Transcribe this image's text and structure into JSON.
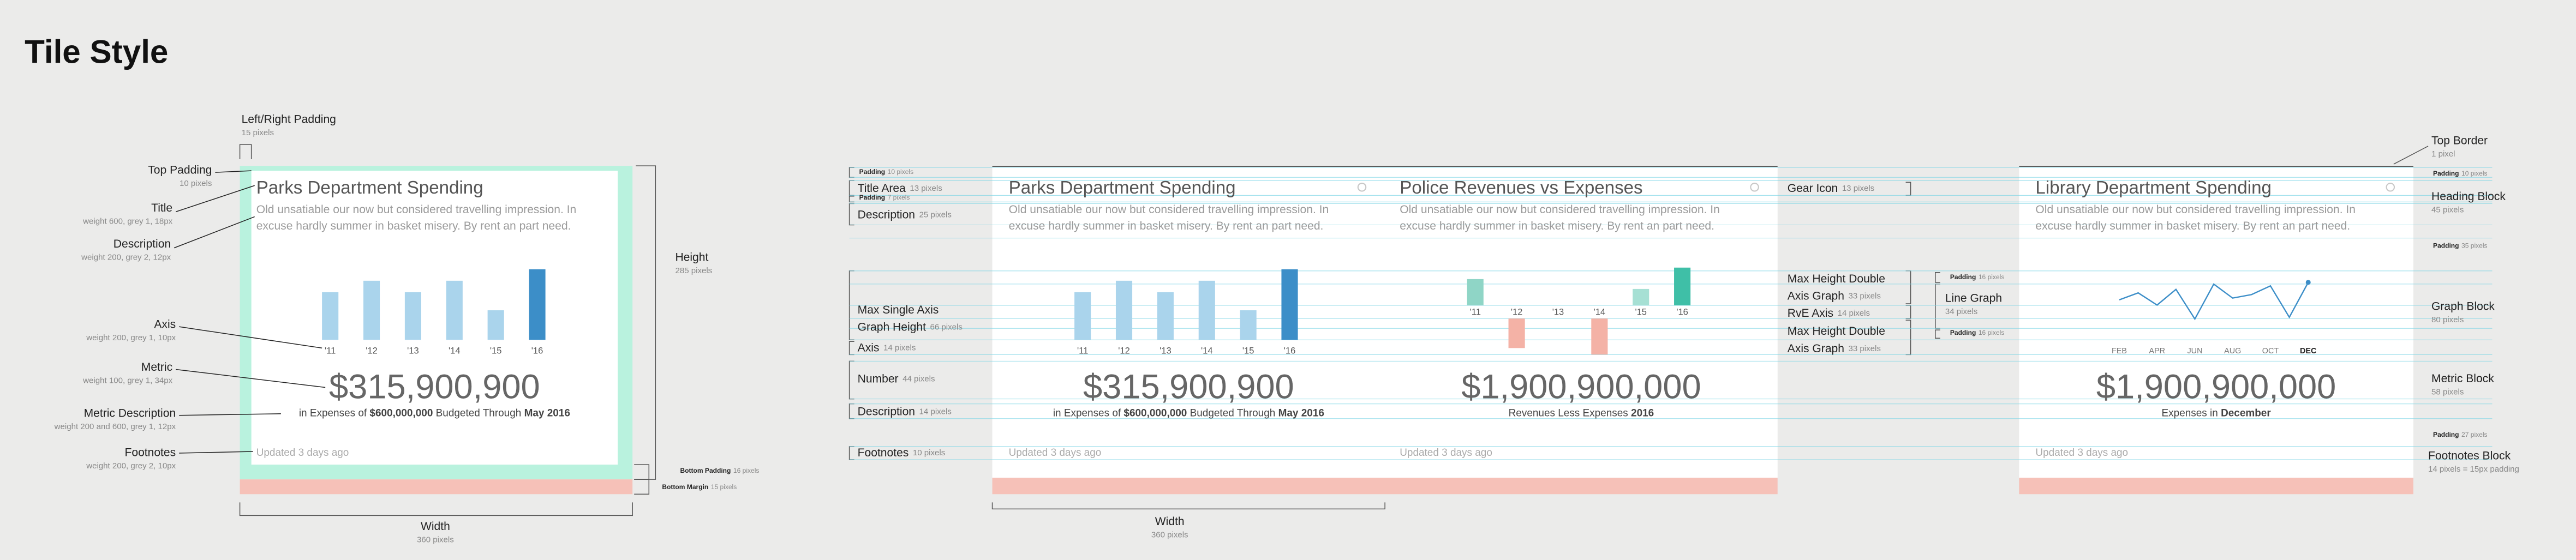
{
  "title": "Tile Style",
  "tiles": [
    {
      "title": "Parks Department Spending",
      "description": [
        "Old unsatiable our now but considered travelling impression. In",
        "excuse hardly summer in basket misery. By rent an part need."
      ],
      "chart": {
        "type": "bar",
        "categories": [
          "'11",
          "'12",
          "'13",
          "'14",
          "'15",
          "'16"
        ],
        "values": [
          29,
          36,
          29,
          36,
          18,
          43
        ],
        "colors": [
          "#aad4ec",
          "#aad4ec",
          "#aad4ec",
          "#aad4ec",
          "#aad4ec",
          "#3c8ec8"
        ]
      },
      "metric": "$315,900,900",
      "metric_description": [
        {
          "text": "in Expenses of "
        },
        {
          "text": "$600,000,000",
          "bold": true
        },
        {
          "text": " Budgeted Through "
        },
        {
          "text": "May 2016",
          "bold": true
        }
      ],
      "footnote": "Updated 3 days ago"
    },
    {
      "title": "Parks Department Spending",
      "description": [
        "Old unsatiable our now but considered travelling impression. In",
        "excuse hardly summer in basket misery. By rent an part need."
      ],
      "chart": {
        "type": "bar",
        "categories": [
          "'11",
          "'12",
          "'13",
          "'14",
          "'15",
          "'16"
        ],
        "values": [
          29,
          36,
          29,
          36,
          18,
          43
        ],
        "colors": [
          "#aad4ec",
          "#aad4ec",
          "#aad4ec",
          "#aad4ec",
          "#aad4ec",
          "#3c8ec8"
        ]
      },
      "metric": "$315,900,900",
      "metric_description": [
        {
          "text": "in Expenses of "
        },
        {
          "text": "$600,000,000",
          "bold": true
        },
        {
          "text": " Budgeted Through "
        },
        {
          "text": "May 2016",
          "bold": true
        }
      ],
      "footnote": "Updated 3 days ago"
    },
    {
      "title": "Police Revenues vs Expenses",
      "description": [
        "Old unsatiable our now but considered travelling impression. In",
        "excuse hardly summer in basket misery. By rent an part need."
      ],
      "chart": {
        "type": "diverging",
        "categories": [
          "'11",
          "'12",
          "'13",
          "'14",
          "'15",
          "'16"
        ],
        "values": [
          16,
          -18,
          0,
          -22,
          10,
          23
        ],
        "colors": [
          "#8fd5c6",
          "#f4b2a6",
          "#8fd5c6",
          "#f4b2a6",
          "#a6e0d4",
          "#3fbfa7"
        ]
      },
      "metric": "$1,900,900,000",
      "metric_description": [
        {
          "text": "Revenues Less Expenses "
        },
        {
          "text": "2016",
          "bold": true
        }
      ],
      "footnote": "Updated 3 days ago"
    },
    {
      "title": "Library Department Spending",
      "description": [
        "Old unsatiable our now but considered travelling impression. In",
        "excuse hardly summer in basket misery. By rent an part need."
      ],
      "chart": {
        "type": "line",
        "categories": [
          "FEB",
          null,
          "APR",
          null,
          "JUN",
          null,
          "AUG",
          null,
          "OCT",
          null,
          "DEC"
        ],
        "values": [
          22,
          26,
          19,
          28,
          11,
          31,
          23,
          25,
          30,
          12,
          32
        ],
        "color": "#3c8ec8"
      },
      "metric": "$1,900,900,000",
      "metric_description": [
        {
          "text": "Expenses in "
        },
        {
          "text": "December",
          "bold": true
        }
      ],
      "footnote": "Updated 3 days ago"
    }
  ],
  "annotations": [
    {
      "label": [
        "Left/Right Padding"
      ],
      "detail": "15 pixels"
    },
    {
      "label": [
        "Top Padding"
      ],
      "detail": "10 pixels"
    },
    {
      "label": [
        "Title"
      ],
      "detail": "weight 600, grey 1, 18px"
    },
    {
      "label": [
        "Description"
      ],
      "detail": "weight 200, grey 2, 12px"
    },
    {
      "label": [
        "Axis"
      ],
      "detail": "weight 200, grey 1, 10px"
    },
    {
      "label": [
        "Metric"
      ],
      "detail": "weight 100, grey 1, 34px"
    },
    {
      "label": [
        "Metric Description"
      ],
      "detail": "weight 200 and 600, grey 1, 12px"
    },
    {
      "label": [
        "Footnotes"
      ],
      "detail": "weight 200, grey 2, 10px"
    },
    {
      "label": [
        "Height"
      ],
      "detail": "285 pixels"
    },
    {
      "label": [
        "Width"
      ],
      "detail": "360 pixels"
    },
    {
      "label": [
        "Bottom Padding"
      ],
      "detail": "16 pixels"
    },
    {
      "label": [
        "Bottom Margin"
      ],
      "detail": "15 pixels"
    },
    {
      "label": [
        "Padding"
      ],
      "detail": "10 pixels"
    },
    {
      "label": [
        "Title Area"
      ],
      "detail": "13 pixels"
    },
    {
      "label": [
        "Padding"
      ],
      "detail": "7 pixels"
    },
    {
      "label": [
        "Description"
      ],
      "detail": "25 pixels"
    },
    {
      "label": [
        "Max Single Axis",
        "Graph Height"
      ],
      "detail": "66 pixels"
    },
    {
      "label": [
        "Axis"
      ],
      "detail": "14 pixels"
    },
    {
      "label": [
        "Number"
      ],
      "detail": "44 pixels"
    },
    {
      "label": [
        "Description"
      ],
      "detail": "14 pixels"
    },
    {
      "label": [
        "Footnotes"
      ],
      "detail": "10 pixels"
    },
    {
      "label": [
        "Width"
      ],
      "detail": "360 pixels"
    },
    {
      "label": [
        "Gear Icon"
      ],
      "detail": "13 pixels"
    },
    {
      "label": [
        "Max Height Double",
        "Axis Graph"
      ],
      "detail": "33 pixels"
    },
    {
      "label": [
        "RvE Axis"
      ],
      "detail": "14 pixels"
    },
    {
      "label": [
        "Max Height Double",
        "Axis Graph"
      ],
      "detail": "33 pixels"
    },
    {
      "label": [
        "Padding"
      ],
      "detail": "16 pixels"
    },
    {
      "label": [
        "Line Graph"
      ],
      "detail": "34 pixels"
    },
    {
      "label": [
        "Padding"
      ],
      "detail": "16 pixels"
    },
    {
      "label": [
        "Top Border"
      ],
      "detail": "1 pixel"
    },
    {
      "label": [
        "Padding"
      ],
      "detail": "10 pixels"
    },
    {
      "label": [
        "Heading Block"
      ],
      "detail": "45 pixels"
    },
    {
      "label": [
        "Padding"
      ],
      "detail": "35 pixels"
    },
    {
      "label": [
        "Graph Block"
      ],
      "detail": "80 pixels"
    },
    {
      "label": [
        "Metric Block"
      ],
      "detail": "58 pixels"
    },
    {
      "label": [
        "Padding"
      ],
      "detail": "27 pixels"
    },
    {
      "label": [
        "Footnotes Block"
      ],
      "detail": "14 pixels = 15px padding"
    }
  ]
}
